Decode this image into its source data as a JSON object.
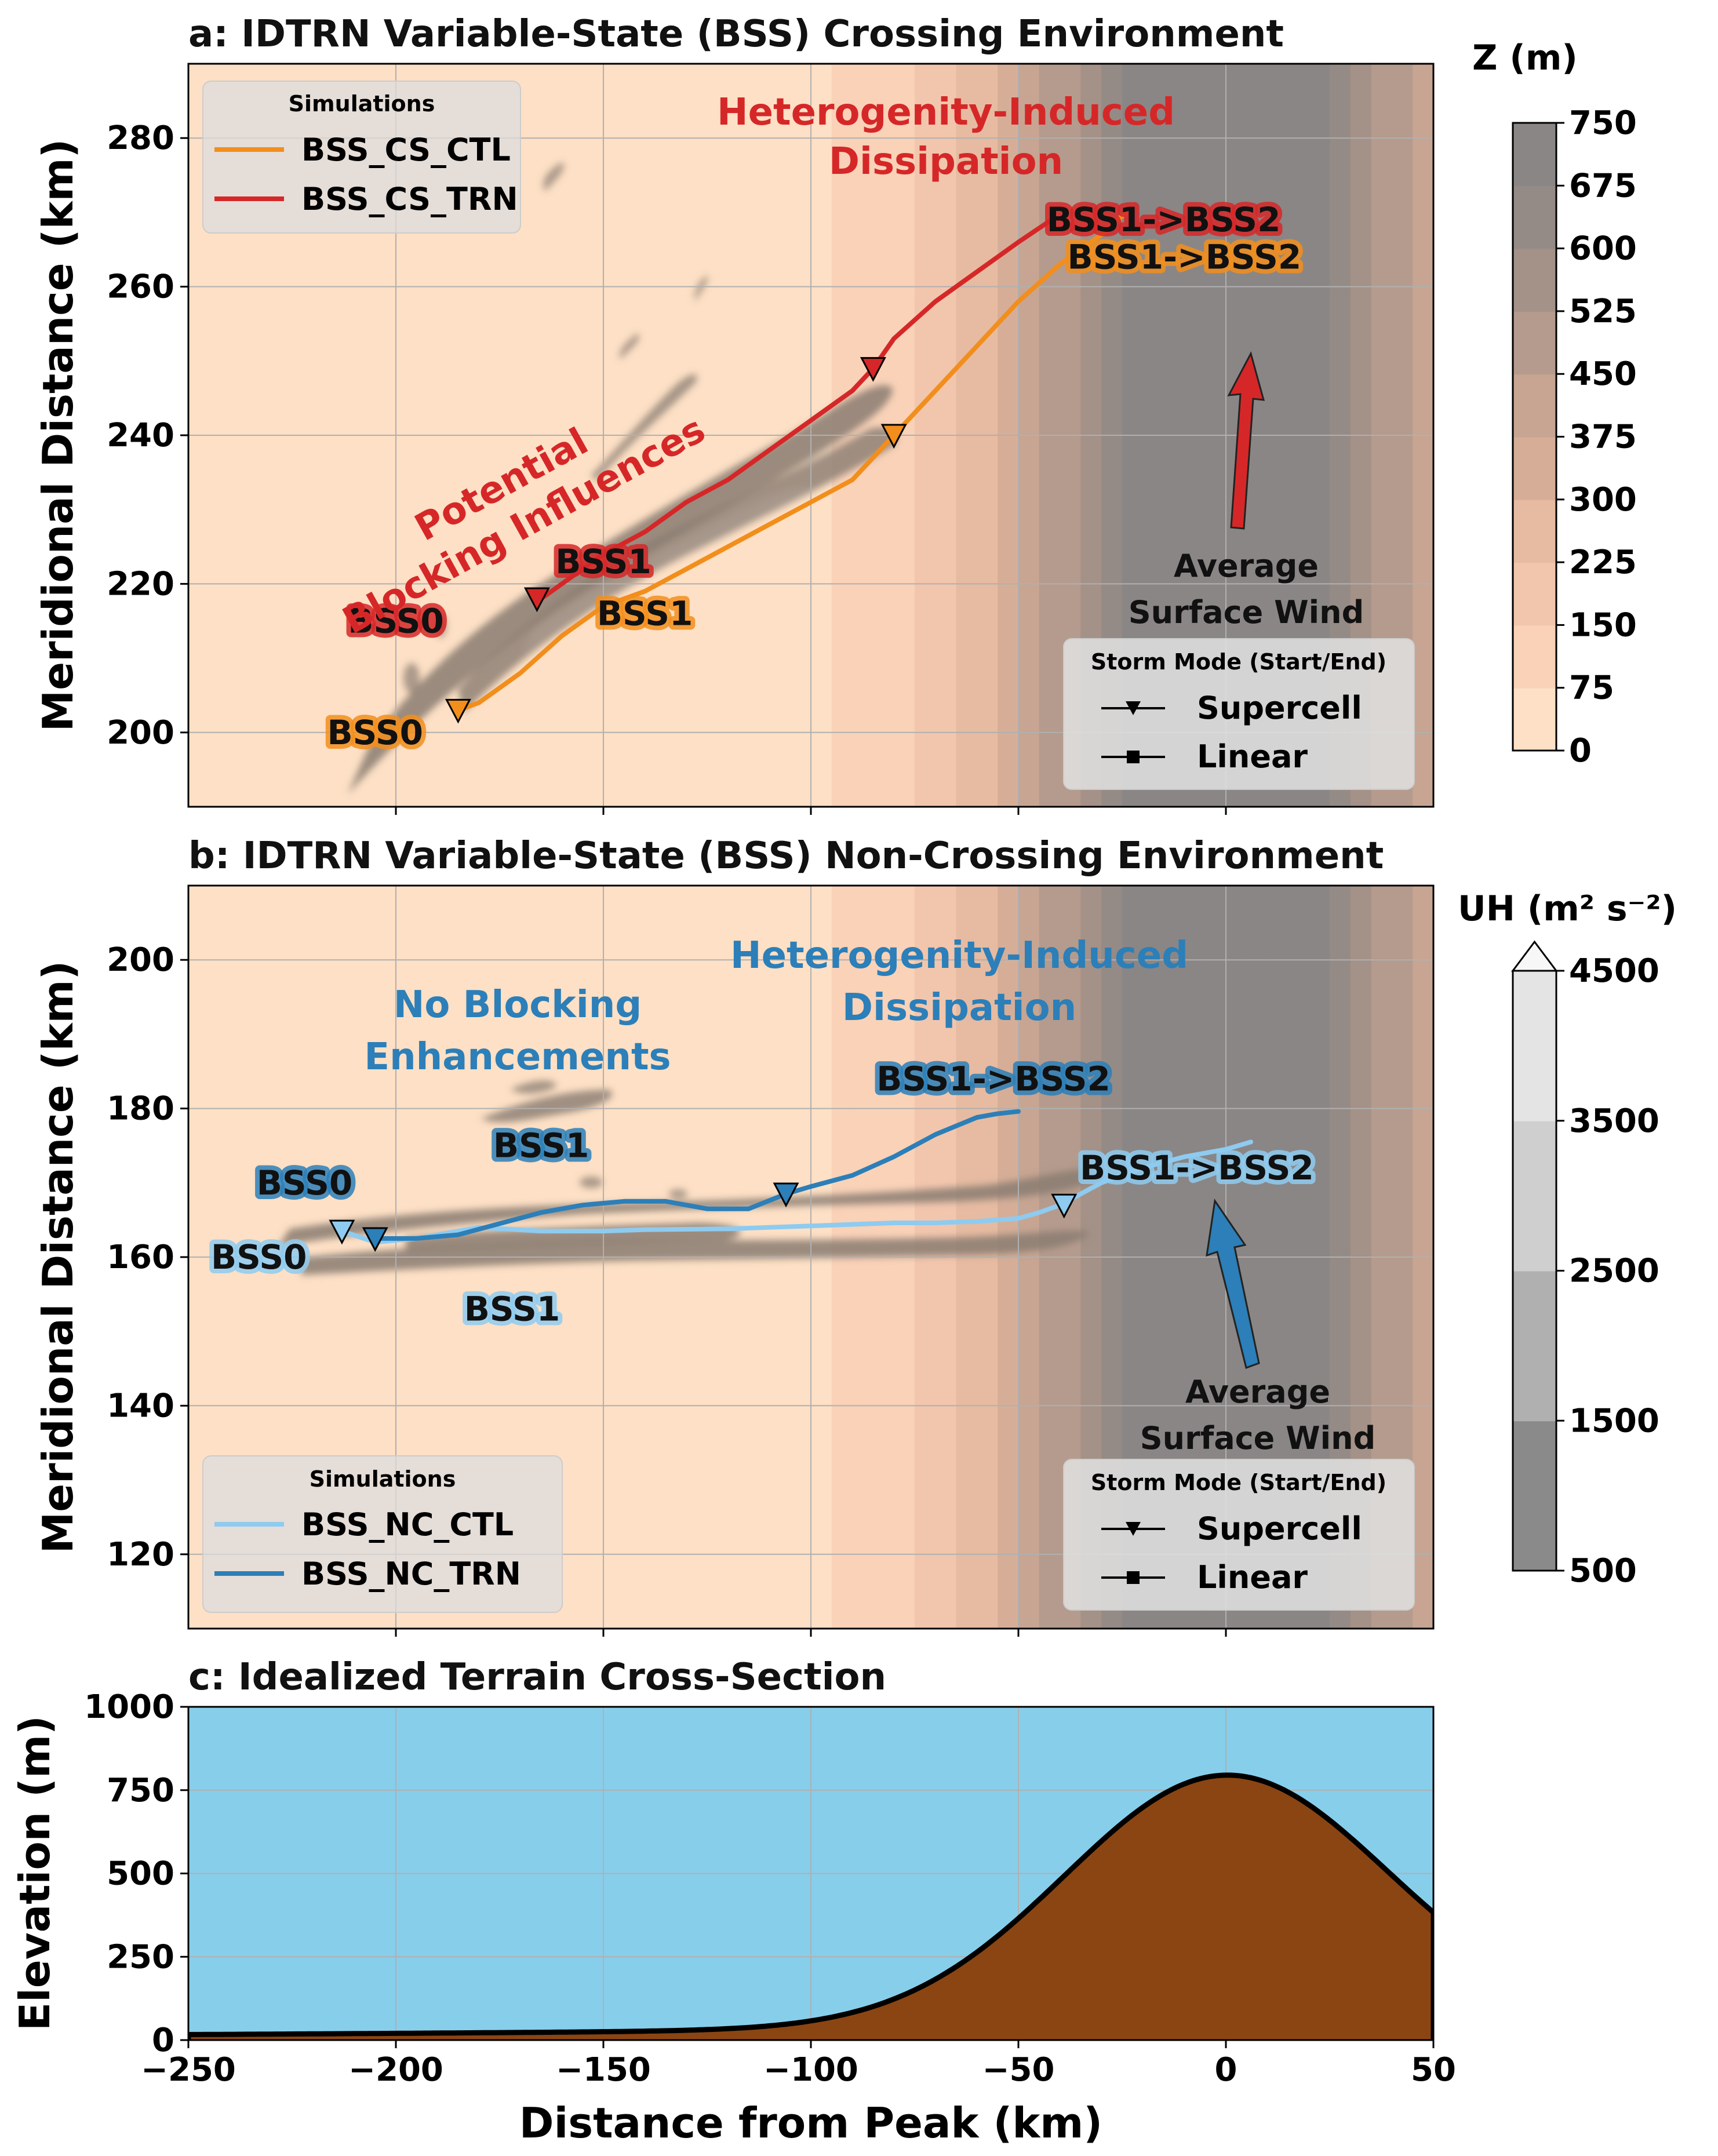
{
  "chart_data": [
    {
      "panel": "a",
      "type": "line",
      "title": "a: IDTRN Variable-State (BSS) Crossing Environment",
      "xlabel": "",
      "ylabel": "Meridional Distance (km)",
      "xlim": [
        -250,
        50
      ],
      "ylim": [
        190,
        290
      ],
      "xticks": [
        -200,
        -150,
        -100,
        -50,
        0
      ],
      "yticks": [
        200,
        220,
        240,
        260,
        280
      ],
      "grid": true,
      "legend": {
        "title": "Simulations",
        "position": "top-left"
      },
      "series": [
        {
          "name": "BSS_CS_CTL",
          "color": "#f28e1c",
          "x": [
            -185,
            -180,
            -170,
            -160,
            -150,
            -140,
            -130,
            -120,
            -110,
            -100,
            -90,
            -80,
            -70,
            -60,
            -50,
            -40,
            -30,
            -24
          ],
          "y": [
            203,
            204,
            208,
            213,
            217,
            219,
            222,
            225,
            228,
            231,
            234,
            240,
            246,
            252,
            258,
            263,
            267,
            270
          ]
        },
        {
          "name": "BSS_CS_TRN",
          "color": "#d62728",
          "x": [
            -165,
            -160,
            -150,
            -140,
            -130,
            -120,
            -110,
            -100,
            -90,
            -85,
            -80,
            -70,
            -60,
            -50,
            -42
          ],
          "y": [
            218,
            220,
            224,
            227,
            231,
            234,
            238,
            242,
            246,
            249,
            253,
            258,
            262,
            266,
            269
          ]
        }
      ],
      "markers": [
        {
          "series": "BSS_CS_CTL",
          "mode": "Supercell",
          "x": -185,
          "y": 203
        },
        {
          "series": "BSS_CS_CTL",
          "mode": "Supercell",
          "x": -80,
          "y": 240
        },
        {
          "series": "BSS_CS_TRN",
          "mode": "Supercell",
          "x": -166,
          "y": 218
        },
        {
          "series": "BSS_CS_TRN",
          "mode": "Supercell",
          "x": -85,
          "y": 249
        }
      ],
      "state_labels": [
        {
          "text": "BSS0",
          "color": "#f28e1c",
          "x": -205,
          "y": 200
        },
        {
          "text": "BSS1",
          "color": "#f28e1c",
          "x": -140,
          "y": 216
        },
        {
          "text": "BSS1->BSS2",
          "color": "#f28e1c",
          "x": -10,
          "y": 264
        },
        {
          "text": "BSS0",
          "color": "#d62728",
          "x": -200,
          "y": 215
        },
        {
          "text": "BSS1",
          "color": "#d62728",
          "x": -150,
          "y": 223
        },
        {
          "text": "BSS1->BSS2",
          "color": "#d62728",
          "x": -15,
          "y": 269
        }
      ],
      "annotations": [
        {
          "lines": [
            "Potential",
            "Blocking Influences"
          ],
          "color": "#d62728"
        },
        {
          "lines": [
            "Heterogenity-Induced",
            "Dissipation"
          ],
          "color": "#d62728"
        },
        {
          "lines": [
            "Average",
            "Surface Wind"
          ],
          "color": "#111111"
        }
      ],
      "wind_arrow_color": "#d62728",
      "mode_legend": {
        "title": "Storm Mode (Start/End)",
        "entries": [
          "Supercell",
          "Linear"
        ],
        "position": "bottom-right"
      }
    },
    {
      "panel": "b",
      "type": "line",
      "title": "b: IDTRN Variable-State (BSS) Non-Crossing Environment",
      "xlabel": "",
      "ylabel": "Meridional Distance (km)",
      "xlim": [
        -250,
        50
      ],
      "ylim": [
        110,
        210
      ],
      "xticks": [
        -200,
        -150,
        -100,
        -50,
        0
      ],
      "yticks": [
        120,
        140,
        160,
        180,
        200
      ],
      "grid": true,
      "legend": {
        "title": "Simulations",
        "position": "bottom-left"
      },
      "series": [
        {
          "name": "BSS_NC_CTL",
          "color": "#8ecbf0",
          "x": [
            -213,
            -205,
            -195,
            -180,
            -165,
            -150,
            -140,
            -120,
            -100,
            -90,
            -80,
            -70,
            -60,
            -50,
            -45,
            -40,
            -30,
            -20,
            -10,
            0,
            6
          ],
          "y": [
            163.5,
            162,
            162.5,
            164,
            163.5,
            163.5,
            163.7,
            163.8,
            164.2,
            164.4,
            164.6,
            164.6,
            164.8,
            165.2,
            166,
            167,
            170,
            172,
            173.5,
            174.5,
            175.5
          ]
        },
        {
          "name": "BSS_NC_TRN",
          "color": "#2c7fb8",
          "x": [
            -205,
            -195,
            -185,
            -175,
            -165,
            -155,
            -145,
            -135,
            -125,
            -115,
            -106,
            -100,
            -90,
            -80,
            -70,
            -60,
            -55,
            -50
          ],
          "y": [
            162.5,
            162.5,
            163,
            164.5,
            166,
            167,
            167.5,
            167.5,
            166.5,
            166.5,
            168.5,
            169.5,
            171,
            173.5,
            176.5,
            178.8,
            179.3,
            179.6
          ]
        }
      ],
      "markers": [
        {
          "series": "BSS_NC_CTL",
          "mode": "Supercell",
          "x": -213,
          "y": 163.5
        },
        {
          "series": "BSS_NC_CTL",
          "mode": "Supercell",
          "x": -39,
          "y": 167
        },
        {
          "series": "BSS_NC_TRN",
          "mode": "Supercell",
          "x": -205,
          "y": 162.5
        },
        {
          "series": "BSS_NC_TRN",
          "mode": "Supercell",
          "x": -106,
          "y": 168.5
        }
      ],
      "state_labels": [
        {
          "text": "BSS0",
          "color": "#8ecbf0",
          "x": -233,
          "y": 160
        },
        {
          "text": "BSS1",
          "color": "#8ecbf0",
          "x": -172,
          "y": 153
        },
        {
          "text": "BSS1->BSS2",
          "color": "#8ecbf0",
          "x": -7,
          "y": 172
        },
        {
          "text": "BSS0",
          "color": "#2c7fb8",
          "x": -222,
          "y": 170
        },
        {
          "text": "BSS1",
          "color": "#2c7fb8",
          "x": -165,
          "y": 175
        },
        {
          "text": "BSS1->BSS2",
          "color": "#2c7fb8",
          "x": -56,
          "y": 184
        }
      ],
      "annotations": [
        {
          "lines": [
            "No Blocking",
            "Enhancements"
          ],
          "color": "#2c7fb8"
        },
        {
          "lines": [
            "Heterogenity-Induced",
            "Dissipation"
          ],
          "color": "#2c7fb8"
        },
        {
          "lines": [
            "Average",
            "Surface Wind"
          ],
          "color": "#111111"
        }
      ],
      "wind_arrow_color": "#2c7fb8",
      "mode_legend": {
        "title": "Storm Mode (Start/End)",
        "entries": [
          "Supercell",
          "Linear"
        ],
        "position": "bottom-right"
      }
    },
    {
      "panel": "c",
      "type": "area",
      "title": "c: Idealized Terrain Cross-Section",
      "xlabel": "Distance from Peak (km)",
      "ylabel": "Elevation (m)",
      "xlim": [
        -250,
        50
      ],
      "ylim": [
        0,
        1000
      ],
      "xticks": [
        -250,
        -200,
        -150,
        -100,
        -50,
        0,
        50
      ],
      "xticklabels": [
        "−250",
        "−200",
        "−150",
        "−100",
        "−50",
        "0",
        "50"
      ],
      "yticks": [
        0,
        250,
        500,
        750,
        1000
      ],
      "grid": true,
      "peak_elevation_m": 750,
      "sky_color": "#87ceeb",
      "terrain_color": "#8b4513"
    }
  ],
  "colorbars": [
    {
      "title": "Z (m)",
      "ticks": [
        0,
        75,
        150,
        225,
        300,
        375,
        450,
        525,
        600,
        675,
        750
      ],
      "colors": [
        "#fde0c5",
        "#f9d2b8",
        "#f2c6ad",
        "#e6bba1",
        "#d6ae98",
        "#c7a592",
        "#b59b8d",
        "#a49187",
        "#958b86",
        "#8a8685"
      ]
    },
    {
      "title": "UH (m² s⁻²)",
      "ticks": [
        500,
        1500,
        2500,
        3500,
        4500
      ],
      "extend": "max",
      "colors": [
        "#8a8a8a",
        "#b0b0b0",
        "#cfcfcf",
        "#e4e4e4",
        "#f7f7f7"
      ]
    }
  ]
}
